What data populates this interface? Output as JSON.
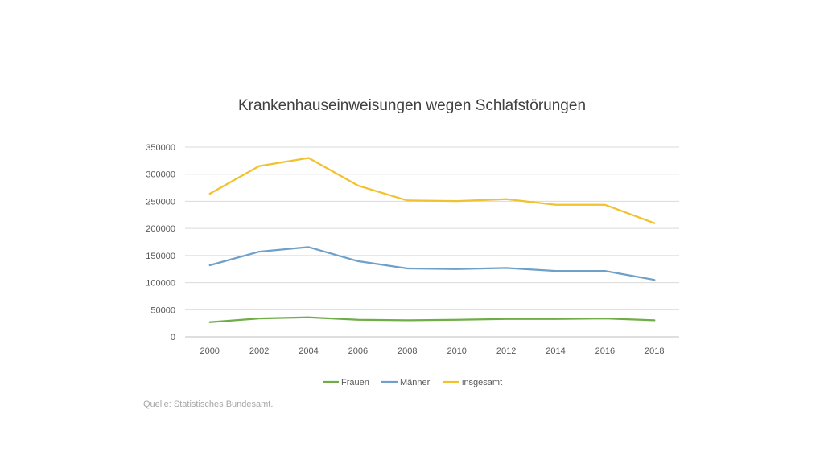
{
  "chart_data": {
    "type": "line",
    "title": "Krankenhauseinweisungen wegen Schlafstörungen",
    "x": [
      "2000",
      "2002",
      "2004",
      "2006",
      "2008",
      "2010",
      "2012",
      "2014",
      "2016",
      "2018"
    ],
    "ylim": [
      0,
      350000
    ],
    "yticks": [
      "0",
      "50000",
      "100000",
      "150000",
      "200000",
      "250000",
      "300000",
      "350000"
    ],
    "grid": true,
    "legend_position": "bottom",
    "series": [
      {
        "name": "Frauen",
        "color": "#70ad47",
        "values": [
          27000,
          34000,
          36000,
          31500,
          30500,
          31500,
          33000,
          33000,
          34000,
          30500
        ]
      },
      {
        "name": "Männer",
        "color": "#6fa0c8",
        "values": [
          132000,
          157000,
          165500,
          139500,
          126000,
          125000,
          127000,
          121500,
          121500,
          105000
        ]
      },
      {
        "name": "insgesamt",
        "color": "#f2c12e",
        "values": [
          264000,
          315000,
          330000,
          279000,
          251500,
          250500,
          254000,
          243500,
          243500,
          209500
        ]
      }
    ]
  },
  "source_note": "Quelle: Statistisches Bundesamt."
}
